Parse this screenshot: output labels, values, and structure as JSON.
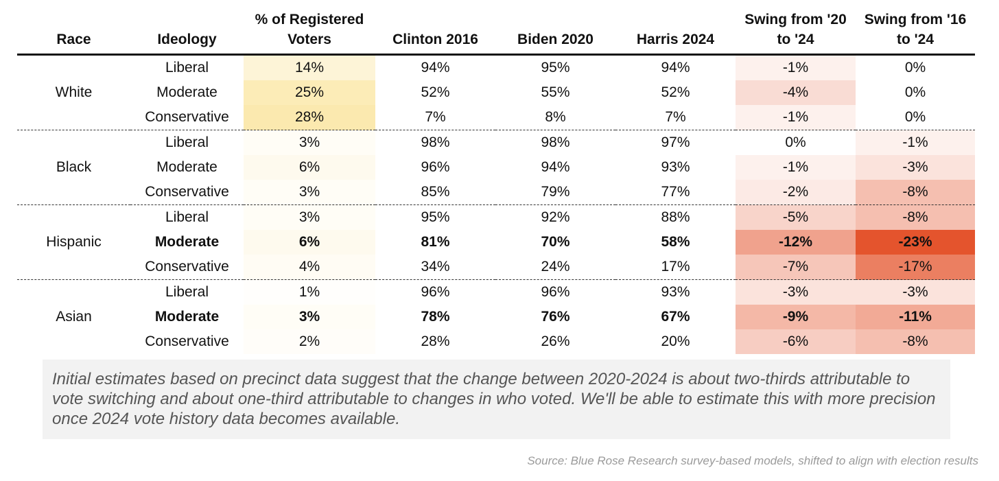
{
  "table": {
    "headers": [
      "Race",
      "Ideology",
      "% of Registered Voters",
      "Clinton 2016",
      "Biden 2020",
      "Harris 2024",
      "Swing from '20 to '24",
      "Swing from '16 to '24"
    ],
    "groups": [
      {
        "race": "White",
        "rows": [
          {
            "ideology": "Liberal",
            "bold": false,
            "cells": [
              "14%",
              "94%",
              "95%",
              "94%",
              "-1%",
              "0%"
            ]
          },
          {
            "ideology": "Moderate",
            "bold": false,
            "cells": [
              "25%",
              "52%",
              "55%",
              "52%",
              "-4%",
              "0%"
            ]
          },
          {
            "ideology": "Conservative",
            "bold": false,
            "cells": [
              "28%",
              "7%",
              "8%",
              "7%",
              "-1%",
              "0%"
            ]
          }
        ]
      },
      {
        "race": "Black",
        "rows": [
          {
            "ideology": "Liberal",
            "bold": false,
            "cells": [
              "3%",
              "98%",
              "98%",
              "97%",
              "0%",
              "-1%"
            ]
          },
          {
            "ideology": "Moderate",
            "bold": false,
            "cells": [
              "6%",
              "96%",
              "94%",
              "93%",
              "-1%",
              "-3%"
            ]
          },
          {
            "ideology": "Conservative",
            "bold": false,
            "cells": [
              "3%",
              "85%",
              "79%",
              "77%",
              "-2%",
              "-8%"
            ]
          }
        ]
      },
      {
        "race": "Hispanic",
        "rows": [
          {
            "ideology": "Liberal",
            "bold": false,
            "cells": [
              "3%",
              "95%",
              "92%",
              "88%",
              "-5%",
              "-8%"
            ]
          },
          {
            "ideology": "Moderate",
            "bold": true,
            "cells": [
              "6%",
              "81%",
              "70%",
              "58%",
              "-12%",
              "-23%"
            ]
          },
          {
            "ideology": "Conservative",
            "bold": false,
            "cells": [
              "4%",
              "34%",
              "24%",
              "17%",
              "-7%",
              "-17%"
            ]
          }
        ]
      },
      {
        "race": "Asian",
        "rows": [
          {
            "ideology": "Liberal",
            "bold": false,
            "cells": [
              "1%",
              "96%",
              "96%",
              "93%",
              "-3%",
              "-3%"
            ]
          },
          {
            "ideology": "Moderate",
            "bold": true,
            "cells": [
              "3%",
              "78%",
              "76%",
              "67%",
              "-9%",
              "-11%"
            ]
          },
          {
            "ideology": "Conservative",
            "bold": false,
            "cells": [
              "2%",
              "28%",
              "26%",
              "20%",
              "-6%",
              "-8%"
            ]
          }
        ]
      }
    ]
  },
  "note": "Initial estimates based on precinct data suggest that the change between 2020-2024 is about two-thirds attributable to vote switching and about one-third attributable to changes in who voted. We'll be able to estimate this with more precision once 2024 vote history data becomes available.",
  "source": "Source: Blue Rose Research survey-based models, shifted to align with election results"
}
